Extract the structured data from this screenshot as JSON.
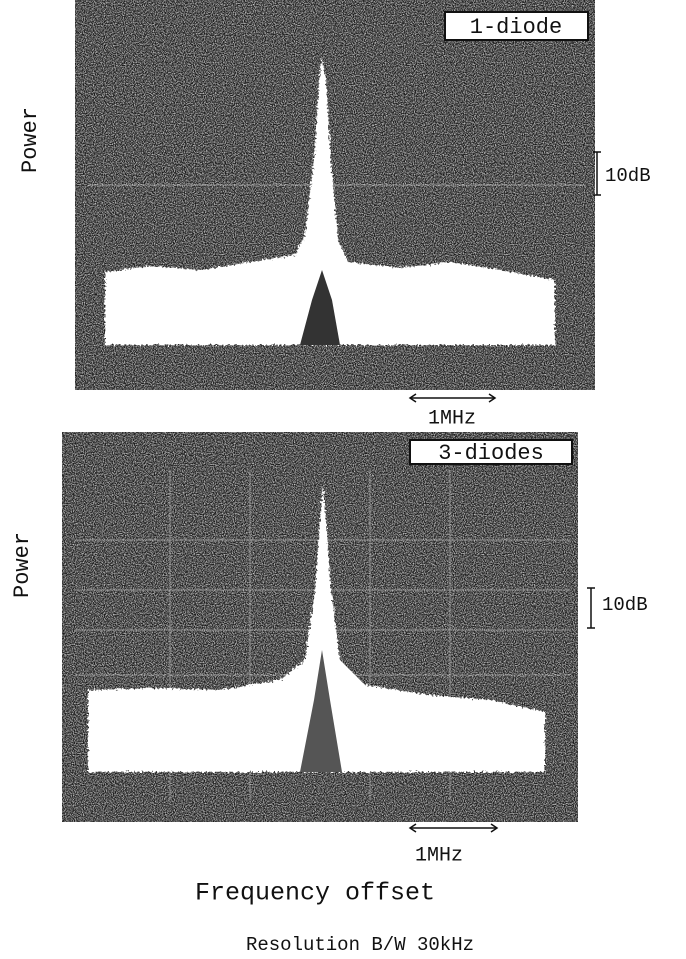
{
  "panels": [
    {
      "label": "1-diode",
      "y_label": "Power",
      "y_scale": "10dB",
      "x_scale": "1MHz"
    },
    {
      "label": "3-diodes",
      "y_label": "Power",
      "y_scale": "10dB",
      "x_scale": "1MHz"
    }
  ],
  "x_label": "Frequency offset",
  "note": "Resolution B/W 30kHz"
}
